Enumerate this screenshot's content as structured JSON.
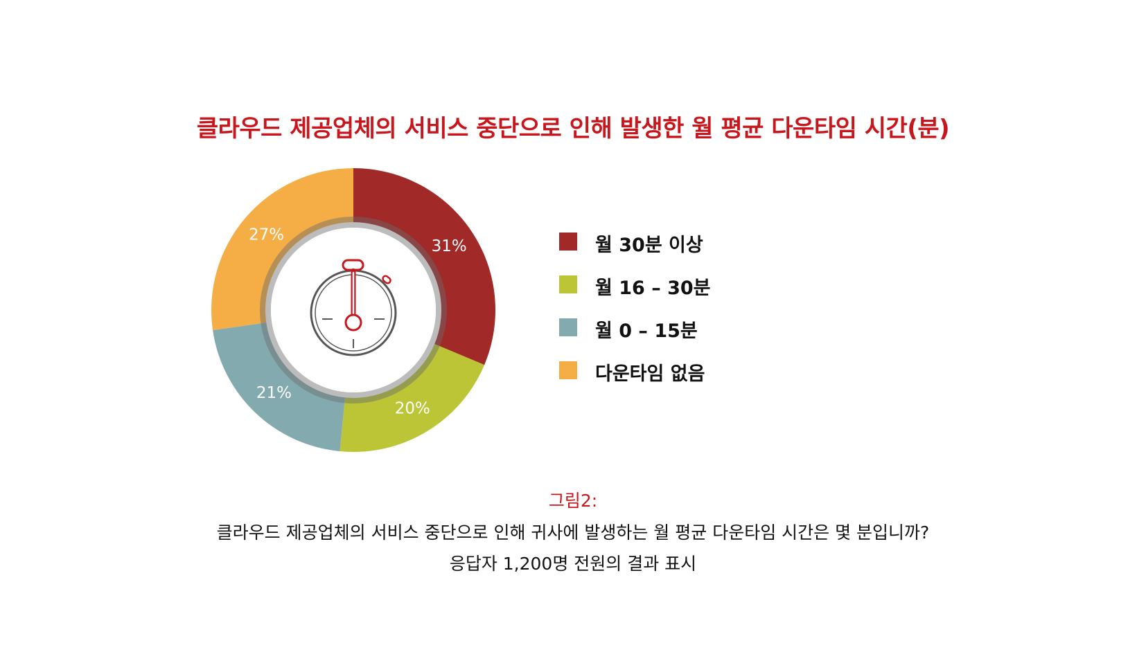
{
  "colors": {
    "title": "#c8161d",
    "accent": "#c8161d"
  },
  "chart_data": {
    "type": "pie",
    "title": "클라우드 제공업체의 서비스 중단으로 인해 발생한 월 평균 다운타임 시간(분)",
    "center_icon": "stopwatch-icon",
    "categories": [
      "월 30분 이상",
      "월 16 – 30분",
      "월 0 – 15분",
      "다운타임 없음"
    ],
    "values": [
      31,
      20,
      21,
      27
    ],
    "value_labels": [
      "31%",
      "20%",
      "21%",
      "27%"
    ],
    "colors": [
      "#a12a29",
      "#bbc536",
      "#83abaf",
      "#f5ae45"
    ],
    "legend_position": "right"
  },
  "caption": {
    "figure_label": "그림2:",
    "question": "클라우드 제공업체의 서비스 중단으로 인해 귀사에 발생하는 월 평균 다운타임 시간은 몇 분입니까?",
    "respondents": "응답자 1,200명 전원의 결과 표시"
  }
}
